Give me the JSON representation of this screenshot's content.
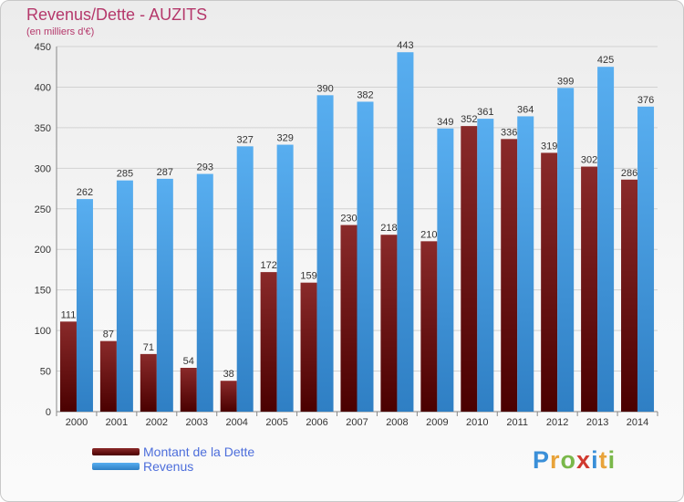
{
  "title": "Revenus/Dette - AUZITS",
  "subtitle": "(en milliers d'€)",
  "logo": {
    "letters": [
      "P",
      "r",
      "o",
      "x",
      "i",
      "t",
      "i"
    ],
    "colors": [
      "#3a8fd8",
      "#e8a33a",
      "#7ab84a",
      "#d0392f",
      "#3a8fd8",
      "#e8a33a",
      "#7ab84a"
    ]
  },
  "colors": {
    "dette": "#7a1515",
    "revenus": "#4a9fe3"
  },
  "chart_data": {
    "type": "bar",
    "title": "Revenus/Dette - AUZITS",
    "subtitle": "(en milliers d'€)",
    "categories": [
      "2000",
      "2001",
      "2002",
      "2003",
      "2004",
      "2005",
      "2006",
      "2007",
      "2008",
      "2009",
      "2010",
      "2011",
      "2012",
      "2013",
      "2014"
    ],
    "series": [
      {
        "name": "Montant de la Dette",
        "values": [
          111,
          87,
          71,
          54,
          38,
          172,
          159,
          230,
          218,
          210,
          352,
          336,
          319,
          302,
          286
        ]
      },
      {
        "name": "Revenus",
        "values": [
          262,
          285,
          287,
          293,
          327,
          329,
          390,
          382,
          443,
          349,
          361,
          364,
          399,
          425,
          376
        ]
      }
    ],
    "ylim": [
      0,
      450
    ],
    "yticks": [
      0,
      50,
      100,
      150,
      200,
      250,
      300,
      350,
      400,
      450
    ],
    "grid": true,
    "legend_position": "bottom-left"
  }
}
